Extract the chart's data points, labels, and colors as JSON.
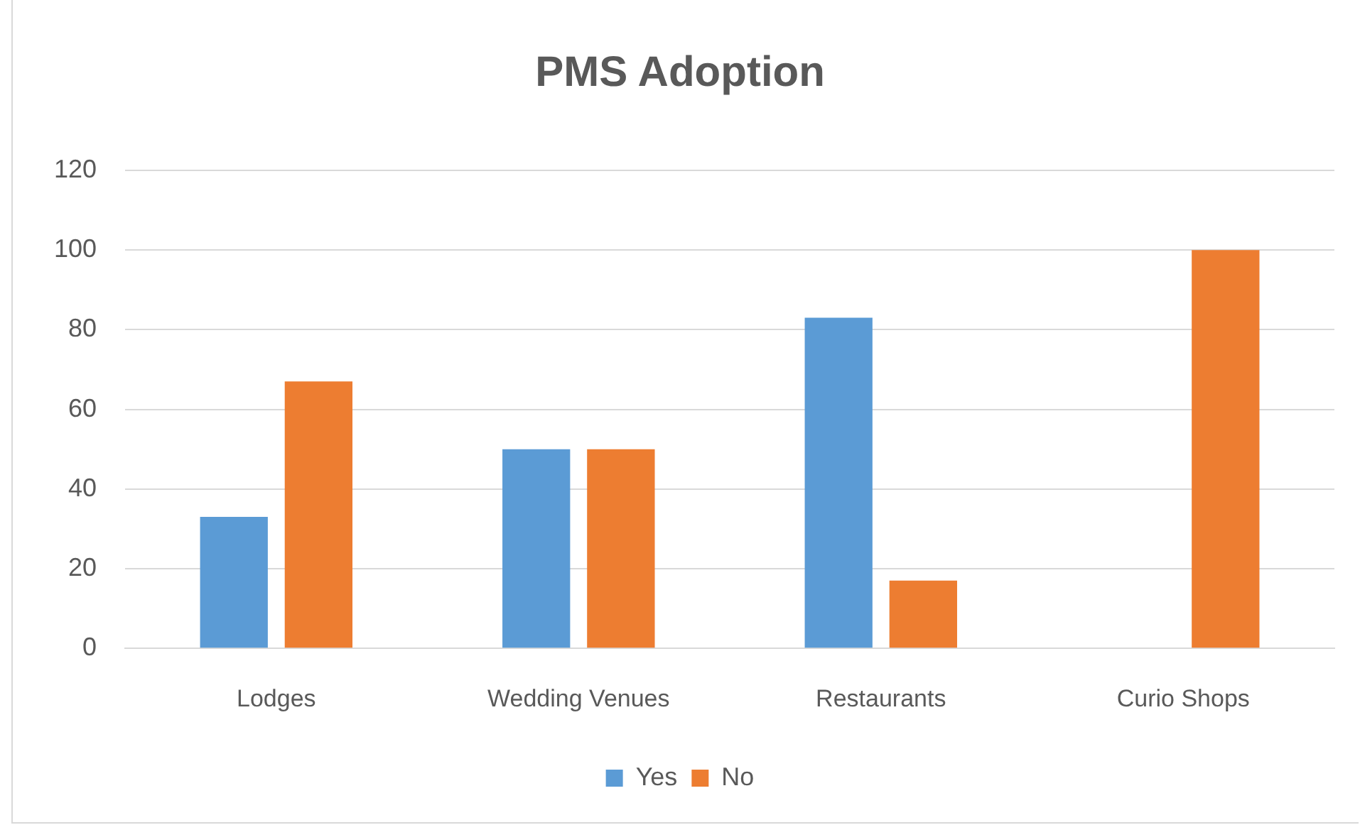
{
  "chart_data": {
    "type": "bar",
    "title": "PMS Adoption",
    "categories": [
      "Lodges",
      "Wedding Venues",
      "Restaurants",
      "Curio Shops"
    ],
    "series": [
      {
        "name": "Yes",
        "color": "#5b9bd5",
        "values": [
          33,
          50,
          83,
          0
        ]
      },
      {
        "name": "No",
        "color": "#ed7d31",
        "values": [
          67,
          50,
          17,
          100
        ]
      }
    ],
    "ylim": [
      0,
      120
    ],
    "yticks": [
      0,
      20,
      40,
      60,
      80,
      100,
      120
    ],
    "grid": "y",
    "legend": "bottom"
  }
}
